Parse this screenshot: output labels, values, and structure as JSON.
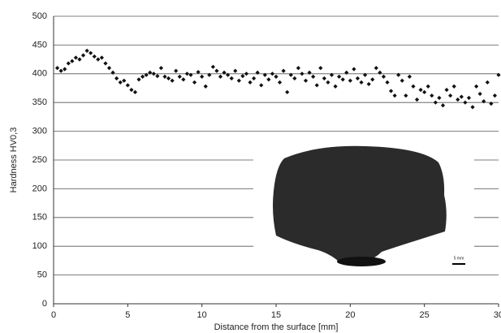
{
  "chart_data": {
    "type": "scatter",
    "x_label": "Distance from the surface [mm]",
    "y_label": "Hardness HV0,3",
    "annotation": "5 mm",
    "color": "#111111",
    "grid": true,
    "xlim": [
      0,
      30
    ],
    "xticks": [
      0,
      5,
      10,
      15,
      20,
      25,
      30
    ],
    "ylim": [
      0,
      500
    ],
    "yticks": [
      0,
      50,
      100,
      150,
      200,
      250,
      300,
      350,
      400,
      450,
      500
    ],
    "x": [
      0.25,
      0.5,
      0.75,
      1.0,
      1.25,
      1.5,
      1.75,
      2.0,
      2.25,
      2.5,
      2.75,
      3.0,
      3.25,
      3.5,
      3.75,
      4.0,
      4.25,
      4.5,
      4.75,
      5.0,
      5.25,
      5.5,
      5.75,
      6.0,
      6.25,
      6.5,
      6.75,
      7.0,
      7.25,
      7.5,
      7.75,
      8.0,
      8.25,
      8.5,
      8.75,
      9.0,
      9.25,
      9.5,
      9.75,
      10.0,
      10.25,
      10.5,
      10.75,
      11.0,
      11.25,
      11.5,
      11.75,
      12.0,
      12.25,
      12.5,
      12.75,
      13.0,
      13.25,
      13.5,
      13.75,
      14.0,
      14.25,
      14.5,
      14.75,
      15.0,
      15.25,
      15.5,
      15.75,
      16.0,
      16.25,
      16.5,
      16.75,
      17.0,
      17.25,
      17.5,
      17.75,
      18.0,
      18.25,
      18.5,
      18.75,
      19.0,
      19.25,
      19.5,
      19.75,
      20.0,
      20.25,
      20.5,
      20.75,
      21.0,
      21.25,
      21.5,
      21.75,
      22.0,
      22.25,
      22.5,
      22.75,
      23.0,
      23.25,
      23.5,
      23.75,
      24.0,
      24.25,
      24.5,
      24.75,
      25.0,
      25.25,
      25.5,
      25.75,
      26.0,
      26.25,
      26.5,
      26.75,
      27.0,
      27.25,
      27.5,
      27.75,
      28.0,
      28.25,
      28.5,
      28.75,
      29.0,
      29.25,
      29.5,
      29.75,
      30.0
    ],
    "values": [
      410,
      405,
      408,
      418,
      422,
      428,
      425,
      432,
      440,
      436,
      430,
      425,
      428,
      418,
      410,
      402,
      392,
      385,
      388,
      380,
      372,
      368,
      390,
      395,
      398,
      402,
      400,
      396,
      410,
      395,
      392,
      388,
      405,
      395,
      390,
      400,
      398,
      385,
      403,
      395,
      378,
      398,
      412,
      405,
      395,
      402,
      398,
      392,
      405,
      388,
      396,
      400,
      385,
      392,
      402,
      380,
      398,
      390,
      400,
      395,
      385,
      405,
      368,
      398,
      392,
      410,
      400,
      388,
      402,
      395,
      380,
      410,
      392,
      385,
      398,
      378,
      395,
      390,
      402,
      388,
      408,
      392,
      385,
      398,
      382,
      390,
      410,
      402,
      395,
      385,
      370,
      362,
      398,
      388,
      362,
      395,
      378,
      355,
      372,
      368,
      378,
      362,
      350,
      358,
      345,
      372,
      362,
      378,
      355,
      360,
      350,
      358,
      342,
      378,
      365,
      352,
      385,
      348,
      362,
      398
    ]
  }
}
